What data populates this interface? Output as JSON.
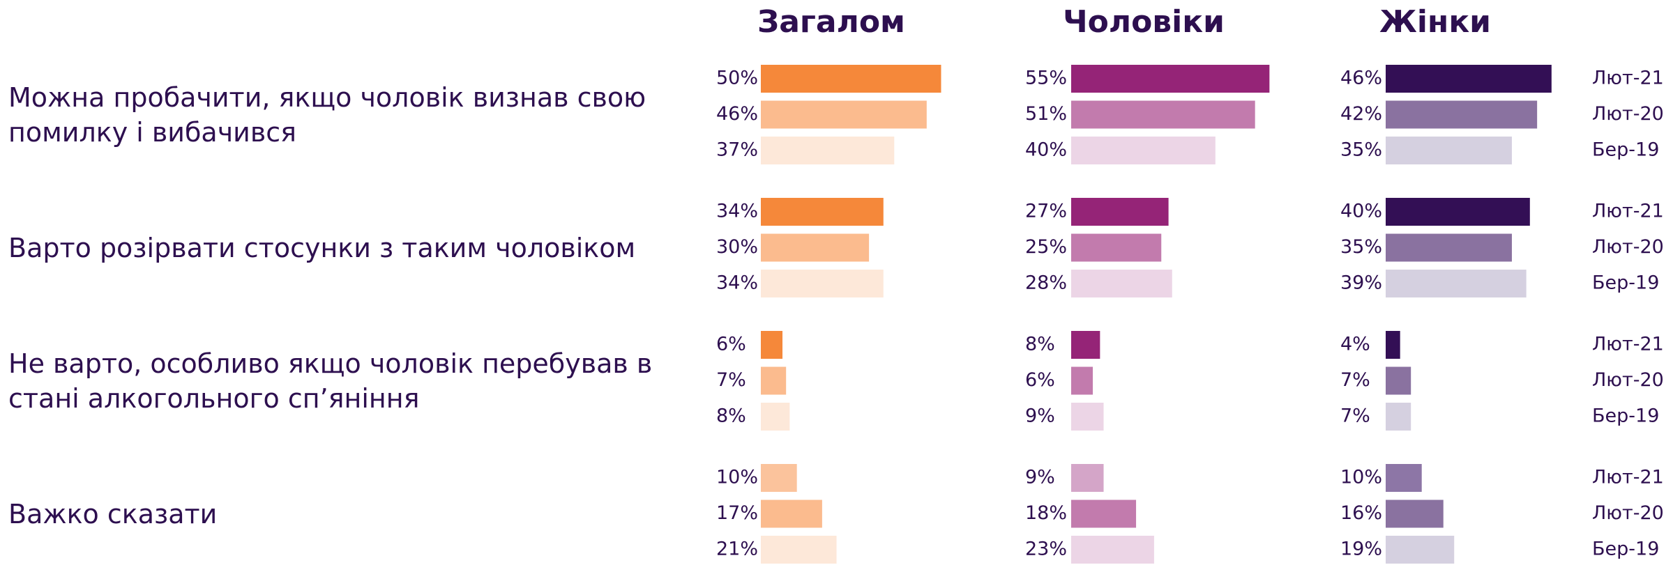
{
  "chart_data": {
    "type": "bar",
    "categories": [
      "Можна пробачити, якщо чоловік визнав свою\nпомилку і вибачився",
      "Варто розірвати стосунки з таким чоловіком",
      "Не варто, особливо якщо чоловік перебував в\nстані алкогольного сп’яніння",
      "Важко сказати"
    ],
    "legend": [
      "Лют-21",
      "Лют-20",
      "Бер-19"
    ],
    "panels": [
      {
        "title": "Загалом",
        "series": [
          {
            "values": [
              50,
              34,
              6,
              10
            ],
            "value_labels": [
              "50%",
              "34%",
              "6%",
              "10%"
            ],
            "colors": [
              "#f5883a",
              "#f5883a",
              "#f5883a",
              "#fbc39c"
            ]
          },
          {
            "values": [
              46,
              30,
              7,
              17
            ],
            "value_labels": [
              "46%",
              "30%",
              "7%",
              "17%"
            ],
            "colors": [
              "#fbbb8e",
              "#fbbb8e",
              "#fbbb8e",
              "#fbbb8e"
            ]
          },
          {
            "values": [
              37,
              34,
              8,
              21
            ],
            "value_labels": [
              "37%",
              "34%",
              "8%",
              "21%"
            ],
            "colors": [
              "#fde8d9",
              "#fde8d9",
              "#fde8d9",
              "#fde8d9"
            ]
          }
        ]
      },
      {
        "title": "Чоловіки",
        "series": [
          {
            "values": [
              55,
              27,
              8,
              9
            ],
            "value_labels": [
              "55%",
              "27%",
              "8%",
              "9%"
            ],
            "colors": [
              "#952477",
              "#952477",
              "#952477",
              "#d4a5c8"
            ]
          },
          {
            "values": [
              51,
              25,
              6,
              18
            ],
            "value_labels": [
              "51%",
              "25%",
              "6%",
              "18%"
            ],
            "colors": [
              "#c27bad",
              "#c27bad",
              "#c27bad",
              "#c27bad"
            ]
          },
          {
            "values": [
              40,
              28,
              9,
              23
            ],
            "value_labels": [
              "40%",
              "28%",
              "9%",
              "23%"
            ],
            "colors": [
              "#ecd5e6",
              "#ecd5e6",
              "#ecd5e6",
              "#ecd5e6"
            ]
          }
        ]
      },
      {
        "title": "Жінки",
        "series": [
          {
            "values": [
              46,
              40,
              4,
              10
            ],
            "value_labels": [
              "46%",
              "40%",
              "4%",
              "10%"
            ],
            "colors": [
              "#330f55",
              "#330f55",
              "#330f55",
              "#8d76a6"
            ]
          },
          {
            "values": [
              42,
              35,
              7,
              16
            ],
            "value_labels": [
              "42%",
              "35%",
              "7%",
              "16%"
            ],
            "colors": [
              "#8a72a0",
              "#8a72a0",
              "#8a72a0",
              "#8a72a0"
            ]
          },
          {
            "values": [
              35,
              39,
              7,
              19
            ],
            "value_labels": [
              "35%",
              "39%",
              "7%",
              "19%"
            ],
            "colors": [
              "#d5d0e0",
              "#d5d0e0",
              "#d5d0e0",
              "#d5d0e0"
            ]
          }
        ]
      }
    ]
  }
}
